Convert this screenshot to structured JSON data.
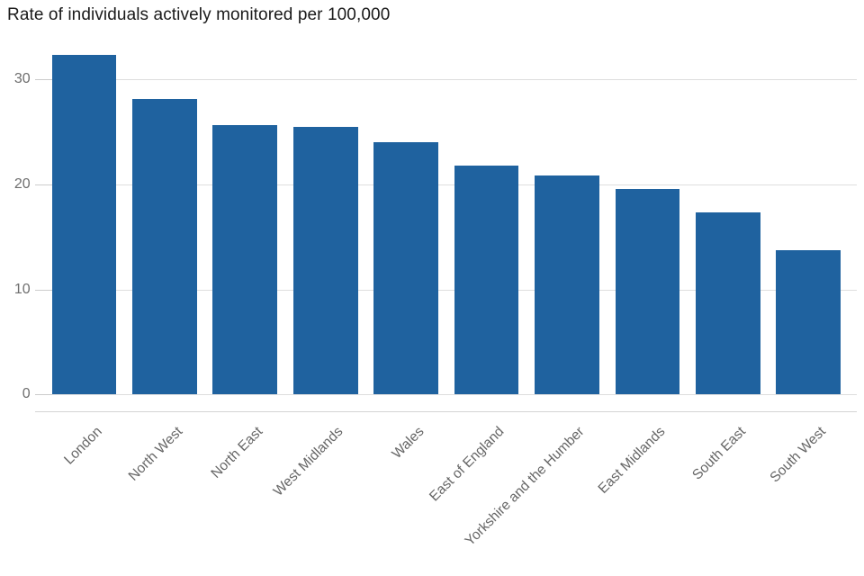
{
  "page": {
    "title": "Rate of individuals actively monitored per 100,000"
  },
  "chart_data": {
    "type": "bar",
    "title": "Rate of individuals actively monitored per 100,000",
    "subtitle": "",
    "xlabel": "",
    "ylabel": "",
    "categories": [
      "London",
      "North West",
      "North East",
      "West Midlands",
      "Wales",
      "East of England",
      "Yorkshire and the Humber",
      "East Midlands",
      "South East",
      "South West"
    ],
    "values": [
      32.3,
      28.1,
      25.6,
      25.4,
      24.0,
      21.8,
      20.8,
      19.5,
      17.3,
      13.7
    ],
    "yticks": [
      0,
      10,
      20,
      30
    ],
    "ylim": [
      0,
      32.3
    ],
    "grid": "horizontal-only",
    "legend": "none",
    "x_label_rotation_deg": 45,
    "colors": {
      "bar": "#1f629f",
      "gridline": "#dedede",
      "tick_mark": "#cccccc",
      "axis_line": "#d4d4d4",
      "y_tick_label": "#6e6e6e",
      "x_category_label": "#666666",
      "title": "#1a1a1a",
      "background": "#ffffff"
    }
  }
}
